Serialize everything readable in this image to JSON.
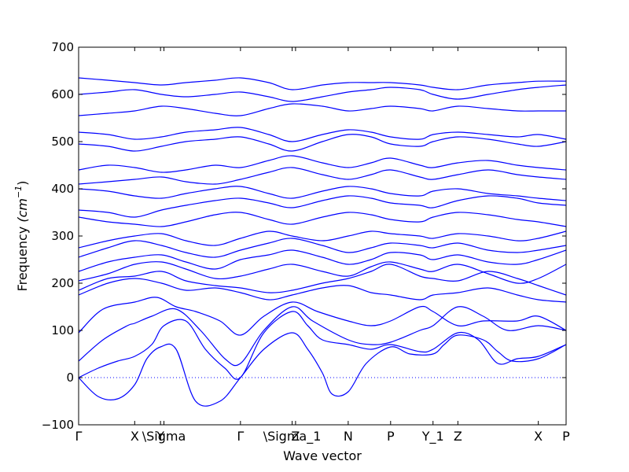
{
  "chart_data": {
    "type": "line",
    "title": "",
    "xlabel": "Wave vector",
    "ylabel": "Frequency ",
    "ylabel_unit": "(cm",
    "ylabel_exp": "−1",
    "ylabel_close": ")",
    "ylim": [
      -100,
      700
    ],
    "xlim": [
      0,
      1
    ],
    "yticks": [
      -100,
      0,
      100,
      200,
      300,
      400,
      500,
      600,
      700
    ],
    "ytick_labels": [
      "−100",
      "0",
      "100",
      "200",
      "300",
      "400",
      "500",
      "600",
      "700"
    ],
    "xticks": [
      {
        "label": "Γ",
        "pos": 0.0
      },
      {
        "label": "X",
        "pos": 0.115
      },
      {
        "label": "Y",
        "pos": 0.168
      },
      {
        "label": "\\Sigma",
        "pos": 0.175
      },
      {
        "label": "Γ",
        "pos": 0.332
      },
      {
        "label": "\\Sigma_1",
        "pos": 0.438
      },
      {
        "label": "Z",
        "pos": 0.445
      },
      {
        "label": "N",
        "pos": 0.553
      },
      {
        "label": "P",
        "pos": 0.64
      },
      {
        "label": "Y_1",
        "pos": 0.727
      },
      {
        "label": "Z",
        "pos": 0.778
      },
      {
        "label": "X",
        "pos": 0.943
      },
      {
        "label": "P",
        "pos": 1.0
      }
    ],
    "zero_line": 0,
    "grid": false,
    "legend": "none",
    "color": "#0000ff",
    "series": [
      {
        "x": [
          0,
          0.04,
          0.08,
          0.115,
          0.14,
          0.168,
          0.2,
          0.24,
          0.29,
          0.332,
          0.38,
          0.438,
          0.47,
          0.5,
          0.52,
          0.553,
          0.59,
          0.64,
          0.68,
          0.727,
          0.75,
          0.778,
          0.83,
          0.86,
          0.89,
          0.943,
          1.0
        ],
        "y": [
          0,
          -40,
          -45,
          -15,
          40,
          65,
          60,
          -50,
          -50,
          0,
          60,
          95,
          60,
          10,
          -35,
          -30,
          30,
          65,
          50,
          50,
          70,
          90,
          80,
          55,
          35,
          40,
          70
        ]
      },
      {
        "x": [
          0,
          0.04,
          0.08,
          0.115,
          0.15,
          0.175,
          0.22,
          0.26,
          0.3,
          0.332,
          0.38,
          0.438,
          0.47,
          0.5,
          0.553,
          0.6,
          0.64,
          0.7,
          0.727,
          0.778,
          0.82,
          0.86,
          0.9,
          0.943,
          1.0
        ],
        "y": [
          0,
          20,
          35,
          45,
          70,
          110,
          120,
          60,
          20,
          0,
          95,
          140,
          110,
          80,
          70,
          60,
          70,
          55,
          60,
          95,
          80,
          30,
          40,
          45,
          70
        ]
      },
      {
        "x": [
          0,
          0.05,
          0.1,
          0.115,
          0.15,
          0.2,
          0.25,
          0.3,
          0.332,
          0.38,
          0.438,
          0.48,
          0.553,
          0.6,
          0.64,
          0.7,
          0.727,
          0.778,
          0.83,
          0.88,
          0.943,
          1.0
        ],
        "y": [
          35,
          80,
          110,
          115,
          130,
          145,
          100,
          40,
          30,
          100,
          150,
          120,
          80,
          70,
          75,
          100,
          110,
          150,
          130,
          100,
          110,
          100
        ]
      },
      {
        "x": [
          0,
          0.05,
          0.115,
          0.16,
          0.2,
          0.24,
          0.29,
          0.332,
          0.38,
          0.438,
          0.49,
          0.553,
          0.6,
          0.64,
          0.7,
          0.727,
          0.778,
          0.83,
          0.9,
          0.943,
          1.0
        ],
        "y": [
          95,
          145,
          160,
          170,
          150,
          140,
          120,
          90,
          130,
          160,
          140,
          120,
          110,
          120,
          150,
          140,
          110,
          120,
          120,
          130,
          100
        ]
      },
      {
        "x": [
          0,
          0.06,
          0.115,
          0.17,
          0.22,
          0.28,
          0.332,
          0.39,
          0.438,
          0.5,
          0.553,
          0.6,
          0.64,
          0.7,
          0.727,
          0.778,
          0.84,
          0.9,
          0.943,
          1.0
        ],
        "y": [
          175,
          200,
          210,
          200,
          185,
          190,
          180,
          165,
          175,
          190,
          195,
          180,
          175,
          165,
          175,
          180,
          190,
          175,
          165,
          160
        ]
      },
      {
        "x": [
          0,
          0.06,
          0.115,
          0.17,
          0.22,
          0.28,
          0.332,
          0.39,
          0.438,
          0.5,
          0.553,
          0.6,
          0.64,
          0.7,
          0.727,
          0.778,
          0.84,
          0.9,
          0.943,
          1.0
        ],
        "y": [
          185,
          210,
          215,
          225,
          205,
          195,
          190,
          180,
          185,
          200,
          210,
          225,
          240,
          215,
          210,
          205,
          225,
          210,
          195,
          175
        ]
      },
      {
        "x": [
          0,
          0.06,
          0.115,
          0.17,
          0.22,
          0.28,
          0.332,
          0.39,
          0.438,
          0.5,
          0.553,
          0.6,
          0.64,
          0.7,
          0.727,
          0.778,
          0.84,
          0.9,
          0.943,
          1.0
        ],
        "y": [
          205,
          220,
          240,
          245,
          230,
          210,
          215,
          230,
          240,
          225,
          215,
          235,
          245,
          230,
          225,
          240,
          220,
          200,
          210,
          240
        ]
      },
      {
        "x": [
          0,
          0.06,
          0.115,
          0.17,
          0.22,
          0.28,
          0.332,
          0.39,
          0.438,
          0.5,
          0.553,
          0.6,
          0.64,
          0.7,
          0.727,
          0.778,
          0.84,
          0.9,
          0.943,
          1.0
        ],
        "y": [
          225,
          245,
          255,
          260,
          245,
          230,
          250,
          260,
          270,
          255,
          240,
          250,
          265,
          260,
          250,
          260,
          245,
          240,
          250,
          270
        ]
      },
      {
        "x": [
          0,
          0.06,
          0.115,
          0.17,
          0.22,
          0.28,
          0.332,
          0.39,
          0.438,
          0.5,
          0.553,
          0.6,
          0.64,
          0.7,
          0.727,
          0.778,
          0.84,
          0.9,
          0.943,
          1.0
        ],
        "y": [
          255,
          275,
          290,
          280,
          265,
          255,
          270,
          285,
          295,
          280,
          265,
          275,
          285,
          280,
          275,
          285,
          270,
          265,
          270,
          280
        ]
      },
      {
        "x": [
          0,
          0.06,
          0.115,
          0.17,
          0.22,
          0.28,
          0.332,
          0.39,
          0.438,
          0.5,
          0.553,
          0.6,
          0.64,
          0.7,
          0.727,
          0.778,
          0.84,
          0.9,
          0.943,
          1.0
        ],
        "y": [
          275,
          290,
          300,
          305,
          290,
          280,
          295,
          310,
          300,
          290,
          300,
          310,
          305,
          300,
          295,
          305,
          300,
          290,
          295,
          310
        ]
      },
      {
        "x": [
          0,
          0.06,
          0.115,
          0.17,
          0.22,
          0.28,
          0.332,
          0.39,
          0.438,
          0.5,
          0.553,
          0.6,
          0.64,
          0.7,
          0.727,
          0.778,
          0.84,
          0.9,
          0.943,
          1.0
        ],
        "y": [
          340,
          330,
          325,
          320,
          330,
          345,
          350,
          335,
          325,
          340,
          350,
          345,
          335,
          330,
          340,
          350,
          345,
          335,
          330,
          320
        ]
      },
      {
        "x": [
          0,
          0.06,
          0.115,
          0.17,
          0.22,
          0.28,
          0.332,
          0.39,
          0.438,
          0.5,
          0.553,
          0.6,
          0.64,
          0.7,
          0.727,
          0.778,
          0.84,
          0.9,
          0.943,
          1.0
        ],
        "y": [
          355,
          350,
          340,
          355,
          365,
          375,
          380,
          370,
          360,
          375,
          385,
          380,
          370,
          365,
          360,
          375,
          385,
          380,
          370,
          365
        ]
      },
      {
        "x": [
          0,
          0.06,
          0.115,
          0.17,
          0.22,
          0.28,
          0.332,
          0.39,
          0.438,
          0.5,
          0.553,
          0.6,
          0.64,
          0.7,
          0.727,
          0.778,
          0.84,
          0.9,
          0.943,
          1.0
        ],
        "y": [
          400,
          395,
          385,
          380,
          390,
          400,
          405,
          390,
          380,
          395,
          405,
          400,
          390,
          385,
          395,
          400,
          390,
          385,
          380,
          375
        ]
      },
      {
        "x": [
          0,
          0.06,
          0.115,
          0.17,
          0.22,
          0.28,
          0.332,
          0.39,
          0.438,
          0.5,
          0.553,
          0.6,
          0.64,
          0.7,
          0.727,
          0.778,
          0.84,
          0.9,
          0.943,
          1.0
        ],
        "y": [
          410,
          415,
          420,
          425,
          415,
          410,
          420,
          435,
          445,
          430,
          420,
          430,
          440,
          425,
          420,
          430,
          440,
          430,
          425,
          420
        ]
      },
      {
        "x": [
          0,
          0.06,
          0.115,
          0.17,
          0.22,
          0.28,
          0.332,
          0.39,
          0.438,
          0.5,
          0.553,
          0.6,
          0.64,
          0.7,
          0.727,
          0.778,
          0.84,
          0.9,
          0.943,
          1.0
        ],
        "y": [
          440,
          450,
          445,
          435,
          440,
          450,
          445,
          460,
          470,
          455,
          445,
          455,
          465,
          450,
          445,
          455,
          460,
          450,
          445,
          440
        ]
      },
      {
        "x": [
          0,
          0.06,
          0.115,
          0.17,
          0.22,
          0.28,
          0.332,
          0.39,
          0.438,
          0.5,
          0.553,
          0.6,
          0.64,
          0.7,
          0.727,
          0.778,
          0.84,
          0.9,
          0.943,
          1.0
        ],
        "y": [
          495,
          490,
          480,
          490,
          500,
          505,
          510,
          495,
          480,
          500,
          515,
          510,
          495,
          490,
          500,
          510,
          505,
          495,
          490,
          500
        ]
      },
      {
        "x": [
          0,
          0.06,
          0.115,
          0.17,
          0.22,
          0.28,
          0.332,
          0.39,
          0.438,
          0.5,
          0.553,
          0.6,
          0.64,
          0.7,
          0.727,
          0.778,
          0.84,
          0.9,
          0.943,
          1.0
        ],
        "y": [
          520,
          515,
          505,
          510,
          520,
          525,
          530,
          515,
          500,
          515,
          525,
          520,
          510,
          505,
          515,
          520,
          515,
          510,
          515,
          505
        ]
      },
      {
        "x": [
          0,
          0.06,
          0.115,
          0.17,
          0.22,
          0.28,
          0.332,
          0.39,
          0.438,
          0.5,
          0.553,
          0.6,
          0.64,
          0.7,
          0.727,
          0.778,
          0.84,
          0.9,
          0.943,
          1.0
        ],
        "y": [
          555,
          560,
          565,
          575,
          570,
          560,
          555,
          570,
          580,
          575,
          565,
          570,
          575,
          570,
          565,
          575,
          570,
          565,
          565,
          565
        ]
      },
      {
        "x": [
          0,
          0.06,
          0.115,
          0.17,
          0.22,
          0.28,
          0.332,
          0.39,
          0.438,
          0.5,
          0.553,
          0.6,
          0.64,
          0.7,
          0.727,
          0.778,
          0.84,
          0.9,
          0.943,
          1.0
        ],
        "y": [
          600,
          605,
          610,
          600,
          595,
          600,
          605,
          595,
          585,
          595,
          605,
          610,
          615,
          610,
          600,
          590,
          600,
          610,
          615,
          620
        ]
      },
      {
        "x": [
          0,
          0.06,
          0.115,
          0.17,
          0.22,
          0.28,
          0.332,
          0.39,
          0.438,
          0.5,
          0.553,
          0.6,
          0.64,
          0.7,
          0.727,
          0.778,
          0.84,
          0.9,
          0.943,
          1.0
        ],
        "y": [
          635,
          630,
          625,
          620,
          625,
          630,
          635,
          625,
          610,
          620,
          625,
          625,
          625,
          620,
          615,
          610,
          620,
          625,
          628,
          628
        ]
      }
    ]
  }
}
